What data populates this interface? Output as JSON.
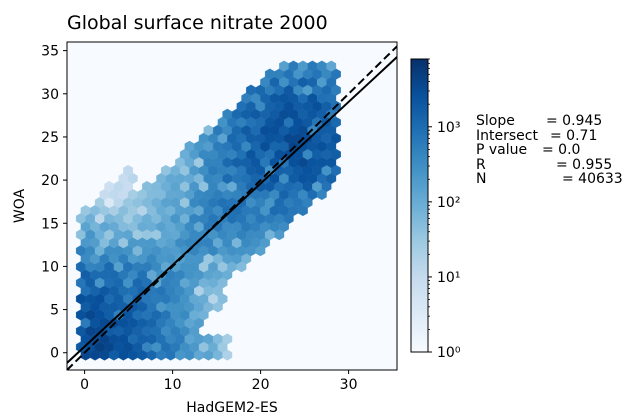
{
  "chart_data": {
    "type": "heatmap",
    "subtype": "hexbin",
    "title": "Global surface nitrate 2000",
    "xlabel": "HadGEM2-ES",
    "ylabel": "WOA",
    "xlim": [
      -2,
      35.5
    ],
    "ylim": [
      -2,
      36
    ],
    "xticks": [
      0,
      10,
      20,
      30
    ],
    "yticks": [
      0,
      5,
      10,
      15,
      20,
      25,
      30,
      35
    ],
    "colormap": "Blues",
    "colorbar": {
      "scale": "log",
      "range": [
        1,
        8000
      ],
      "ticks": [
        1,
        10,
        100,
        1000
      ],
      "tick_labels": [
        "10⁰",
        "10¹",
        "10²",
        "10³"
      ]
    },
    "lines": [
      {
        "name": "regression fit",
        "style": "solid",
        "color": "#000000",
        "slope": 0.945,
        "intercept": 0.71
      },
      {
        "name": "1:1 line",
        "style": "dashed",
        "color": "#000000",
        "slope": 1.0,
        "intercept": 0.0
      }
    ],
    "density_clusters": [
      {
        "x": 0.5,
        "y": 1.0,
        "count": 3000
      },
      {
        "x": 0.8,
        "y": 6.0,
        "count": 300
      },
      {
        "x": 1.0,
        "y": 8.0,
        "count": 200
      },
      {
        "x": 4.0,
        "y": 1.0,
        "count": 400
      },
      {
        "x": 8.0,
        "y": 7.0,
        "count": 120
      },
      {
        "x": 14.0,
        "y": 14.0,
        "count": 150
      },
      {
        "x": 17.0,
        "y": 17.0,
        "count": 250
      },
      {
        "x": 22.0,
        "y": 22.0,
        "count": 800
      },
      {
        "x": 24.5,
        "y": 25.5,
        "count": 2500
      },
      {
        "x": 9.0,
        "y": 18.0,
        "count": 30
      }
    ],
    "stats": [
      {
        "label": "Slope",
        "value": "= 0.945"
      },
      {
        "label": "Intersect",
        "value": "= 0.71"
      },
      {
        "label": "P value",
        "value": "= 0.0"
      },
      {
        "label": "R",
        "value": "= 0.955"
      },
      {
        "label": "N",
        "value": "= 40633"
      }
    ]
  }
}
